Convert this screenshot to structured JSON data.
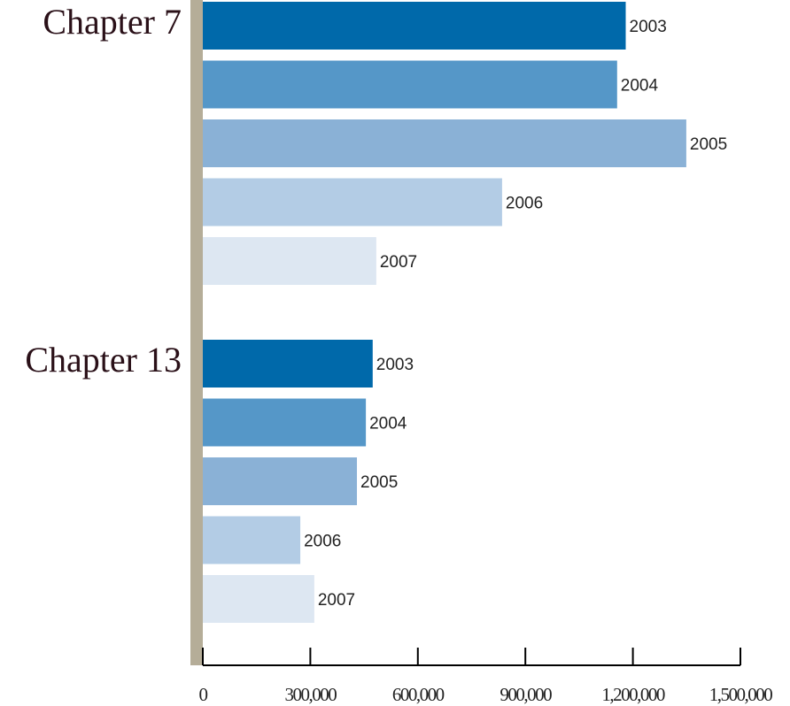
{
  "chart_data": {
    "type": "bar",
    "orientation": "horizontal",
    "categories": [
      "Chapter 7",
      "Chapter 13"
    ],
    "series": [
      {
        "name": "2003",
        "color": "#0069aa",
        "values": [
          1180000,
          474000
        ]
      },
      {
        "name": "2004",
        "color": "#5597c8",
        "values": [
          1156000,
          455000
        ]
      },
      {
        "name": "2005",
        "color": "#8ab1d6",
        "values": [
          1349000,
          430000
        ]
      },
      {
        "name": "2006",
        "color": "#b3cce5",
        "values": [
          835000,
          272000
        ]
      },
      {
        "name": "2007",
        "color": "#dde7f2",
        "values": [
          484000,
          311000
        ]
      }
    ],
    "xlim": [
      0,
      1500000
    ],
    "xticks": [
      0,
      {
        "value": 300000,
        "label": "300,000"
      },
      {
        "value": 600000,
        "label": "600,000"
      },
      {
        "value": 900000,
        "label": "900,000"
      },
      {
        "value": 1200000,
        "label": "1,200,000"
      },
      {
        "value": 1500000,
        "label": "1,500,000"
      }
    ],
    "grid": false
  }
}
